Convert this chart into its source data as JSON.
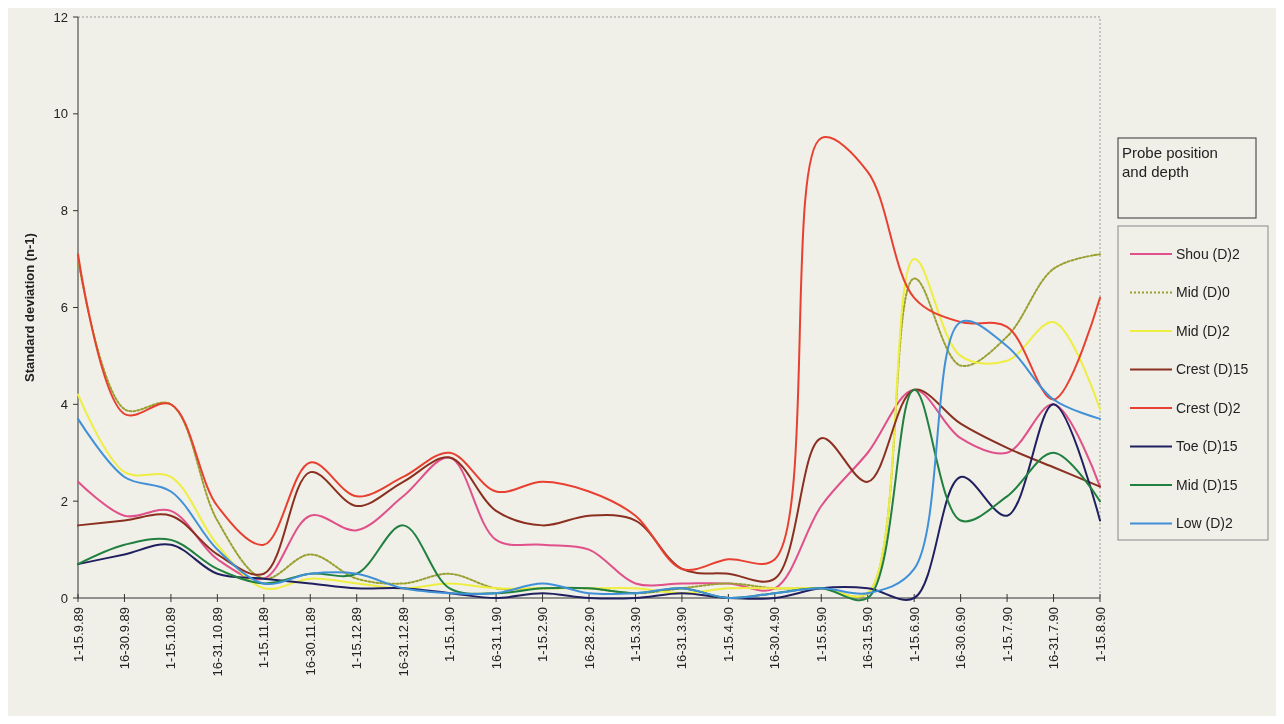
{
  "chart_data": {
    "type": "line",
    "ylabel": "Standard deviation (n-1)",
    "legend_title": "Probe position and depth",
    "legend": "right",
    "grid": false,
    "line_style": "solid",
    "categories": [
      "1-15.9.89",
      "16-30.9.89",
      "1-15.10.89",
      "16-31.10.89",
      "1-15.11.89",
      "16-30.11.89",
      "1-15.12.89",
      "16-31.12.89",
      "1-15.1.90",
      "16-31.1.90",
      "1-15.2.90",
      "16-28.2.90",
      "1-15.3.90",
      "16-31.3.90",
      "1-15.4.90",
      "16-30.4.90",
      "1-15.5.90",
      "16-31.5.90",
      "1-15.6.90",
      "16-30.6.90",
      "1-15.7.90",
      "16-31.7.90",
      "1-15.8.90"
    ],
    "ylim": [
      0,
      12
    ],
    "yticks": [
      0,
      2,
      4,
      6,
      8,
      10,
      12
    ],
    "series": [
      {
        "name": "Shou (D)2",
        "color": "#e0508a",
        "values": [
          2.4,
          1.7,
          1.8,
          0.8,
          0.4,
          1.7,
          1.4,
          2.1,
          2.9,
          1.2,
          1.1,
          1.0,
          0.3,
          0.3,
          0.3,
          0.2,
          1.9,
          3.0,
          4.3,
          3.3,
          3.0,
          4.0,
          2.3
        ]
      },
      {
        "name": "Mid (D)0",
        "color": "#9aa030",
        "line_style": "dotted",
        "values": [
          7.0,
          3.9,
          4.0,
          1.6,
          0.4,
          0.9,
          0.4,
          0.3,
          0.5,
          0.2,
          0.2,
          0.2,
          0.1,
          0.2,
          0.3,
          0.2,
          0.2,
          0.1,
          6.6,
          4.8,
          5.4,
          6.8,
          7.1
        ]
      },
      {
        "name": "Mid (D)2",
        "color": "#eeee40",
        "values": [
          4.2,
          2.6,
          2.5,
          1.1,
          0.2,
          0.4,
          0.3,
          0.2,
          0.3,
          0.2,
          0.2,
          0.2,
          0.2,
          0.1,
          0.2,
          0.2,
          0.2,
          0.1,
          7.0,
          5.0,
          4.9,
          5.7,
          3.9
        ]
      },
      {
        "name": "Crest (D)15",
        "color": "#8b3020",
        "values": [
          1.5,
          1.6,
          1.7,
          0.9,
          0.5,
          2.6,
          1.9,
          2.4,
          2.9,
          1.8,
          1.5,
          1.7,
          1.6,
          0.6,
          0.5,
          0.4,
          3.3,
          2.4,
          4.3,
          3.6,
          3.1,
          2.7,
          2.3
        ]
      },
      {
        "name": "Crest (D)2",
        "color": "#e84030",
        "values": [
          7.1,
          3.8,
          4.0,
          1.9,
          1.1,
          2.8,
          2.1,
          2.5,
          3.0,
          2.2,
          2.4,
          2.2,
          1.7,
          0.6,
          0.8,
          0.8,
          9.5,
          8.8,
          6.2,
          5.7,
          5.6,
          4.1,
          6.2
        ]
      },
      {
        "name": "Toe (D)15",
        "color": "#202060",
        "values": [
          0.7,
          0.9,
          1.1,
          0.5,
          0.4,
          0.3,
          0.2,
          0.2,
          0.1,
          0.0,
          0.1,
          0.0,
          0.0,
          0.1,
          0.0,
          0.0,
          0.2,
          0.2,
          0.0,
          2.5,
          1.7,
          4.0,
          1.6
        ]
      },
      {
        "name": "Mid (D)15",
        "color": "#208040",
        "values": [
          0.7,
          1.1,
          1.2,
          0.6,
          0.3,
          0.5,
          0.5,
          1.5,
          0.2,
          0.1,
          0.2,
          0.2,
          0.1,
          0.2,
          0.0,
          0.1,
          0.2,
          0.0,
          4.3,
          1.6,
          2.1,
          3.0,
          2.0
        ]
      },
      {
        "name": "Low (D)2",
        "color": "#4090d8",
        "values": [
          3.7,
          2.5,
          2.2,
          1.0,
          0.3,
          0.5,
          0.5,
          0.2,
          0.1,
          0.1,
          0.3,
          0.1,
          0.1,
          0.2,
          0.0,
          0.1,
          0.2,
          0.1,
          0.6,
          5.7,
          5.2,
          4.1,
          3.7
        ]
      }
    ]
  }
}
